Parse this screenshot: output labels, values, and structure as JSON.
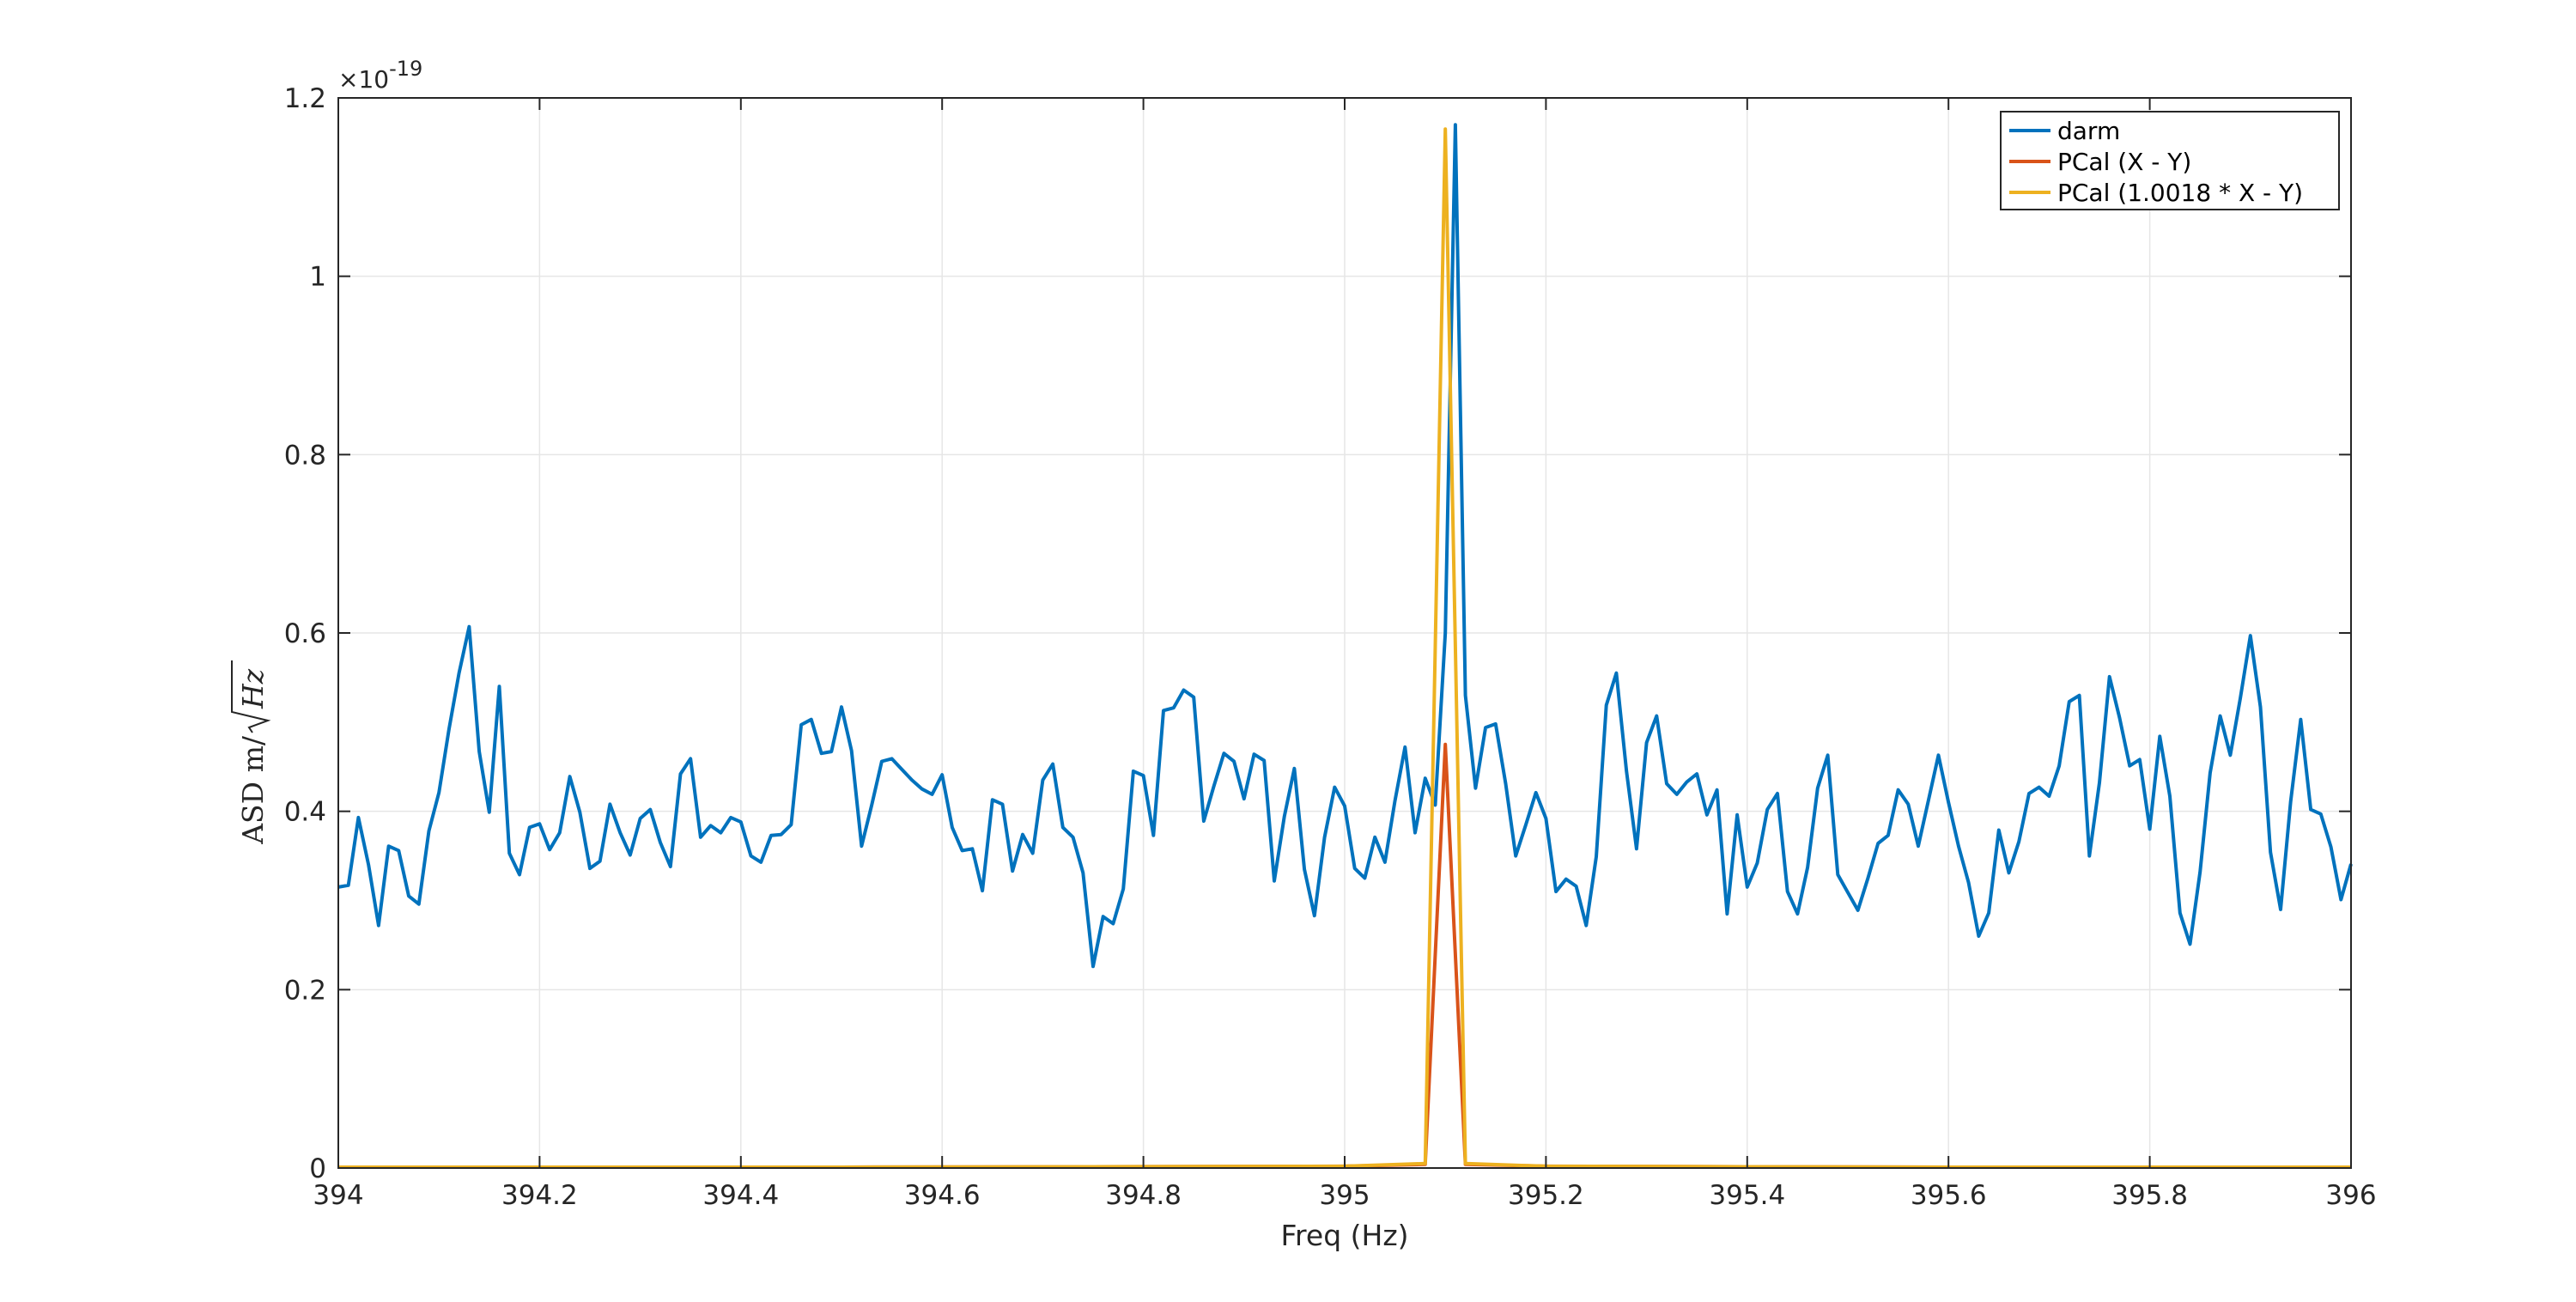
{
  "chart_data": {
    "type": "line",
    "xlabel": "Freq (Hz)",
    "ylabel_prefix": "ASD m/",
    "ylabel_radicand": "Hz",
    "y_exponent_label": "×10",
    "y_exponent_power": "-19",
    "xlim": [
      394,
      396
    ],
    "ylim": [
      0,
      1.2
    ],
    "grid": true,
    "legend_position": "top-right",
    "x_ticks": [
      394,
      394.2,
      394.4,
      394.6,
      394.8,
      395,
      395.2,
      395.4,
      395.6,
      395.8,
      396
    ],
    "x_tick_labels": [
      "394",
      "394.2",
      "394.4",
      "394.6",
      "394.8",
      "395",
      "395.2",
      "395.4",
      "395.6",
      "395.8",
      "396"
    ],
    "y_ticks": [
      0,
      0.2,
      0.4,
      0.6,
      0.8,
      1,
      1.2
    ],
    "y_tick_labels": [
      "0",
      "0.2",
      "0.4",
      "0.6",
      "0.8",
      "1",
      "1.2"
    ],
    "series": [
      {
        "name": "darm",
        "color": "#0072BD",
        "x_start": 394,
        "x_step": 0.01,
        "values": [
          0.315,
          0.317,
          0.393,
          0.34,
          0.272,
          0.361,
          0.356,
          0.305,
          0.296,
          0.378,
          0.421,
          0.492,
          0.555,
          0.607,
          0.467,
          0.399,
          0.54,
          0.353,
          0.329,
          0.382,
          0.386,
          0.357,
          0.376,
          0.439,
          0.399,
          0.336,
          0.344,
          0.408,
          0.376,
          0.351,
          0.392,
          0.402,
          0.365,
          0.338,
          0.442,
          0.459,
          0.371,
          0.384,
          0.376,
          0.393,
          0.388,
          0.35,
          0.343,
          0.373,
          0.374,
          0.385,
          0.497,
          0.503,
          0.465,
          0.467,
          0.517,
          0.468,
          0.361,
          0.407,
          0.456,
          0.459,
          0.447,
          0.435,
          0.425,
          0.419,
          0.441,
          0.382,
          0.356,
          0.358,
          0.311,
          0.413,
          0.408,
          0.333,
          0.374,
          0.353,
          0.435,
          0.453,
          0.382,
          0.371,
          0.331,
          0.226,
          0.282,
          0.274,
          0.313,
          0.445,
          0.44,
          0.373,
          0.513,
          0.516,
          0.536,
          0.528,
          0.389,
          0.428,
          0.465,
          0.456,
          0.414,
          0.464,
          0.457,
          0.322,
          0.394,
          0.448,
          0.335,
          0.283,
          0.371,
          0.427,
          0.406,
          0.336,
          0.325,
          0.371,
          0.343,
          0.412,
          0.472,
          0.376,
          0.437,
          0.407,
          0.6,
          1.17,
          0.53,
          0.426,
          0.494,
          0.498,
          0.431,
          0.35,
          0.385,
          0.421,
          0.392,
          0.31,
          0.324,
          0.316,
          0.272,
          0.349,
          0.519,
          0.555,
          0.445,
          0.358,
          0.477,
          0.507,
          0.431,
          0.419,
          0.433,
          0.442,
          0.396,
          0.424,
          0.285,
          0.396,
          0.315,
          0.342,
          0.402,
          0.42,
          0.31,
          0.285,
          0.337,
          0.426,
          0.463,
          0.329,
          0.309,
          0.289,
          0.325,
          0.364,
          0.373,
          0.424,
          0.408,
          0.361,
          0.412,
          0.463,
          0.41,
          0.361,
          0.32,
          0.26,
          0.286,
          0.379,
          0.331,
          0.366,
          0.42,
          0.427,
          0.417,
          0.451,
          0.523,
          0.53,
          0.35,
          0.432,
          0.551,
          0.505,
          0.451,
          0.458,
          0.38,
          0.484,
          0.417,
          0.286,
          0.251,
          0.332,
          0.443,
          0.507,
          0.463,
          0.527,
          0.597,
          0.517,
          0.354,
          0.29,
          0.411,
          0.503,
          0.402,
          0.397,
          0.36,
          0.301,
          0.341
        ]
      },
      {
        "name": "PCal (X - Y)",
        "color": "#D95319",
        "points": [
          [
            394,
            0.001
          ],
          [
            394.5,
            0.001
          ],
          [
            395.0,
            0.002
          ],
          [
            395.08,
            0.004
          ],
          [
            395.1,
            0.475
          ],
          [
            395.12,
            0.004
          ],
          [
            395.2,
            0.002
          ],
          [
            395.6,
            0.001
          ],
          [
            396,
            0.001
          ]
        ]
      },
      {
        "name": "PCal (1.0018 * X - Y)",
        "color": "#EDB120",
        "points": [
          [
            394,
            0.001
          ],
          [
            394.5,
            0.001
          ],
          [
            395.0,
            0.002
          ],
          [
            395.08,
            0.005
          ],
          [
            395.1,
            1.165
          ],
          [
            395.12,
            0.005
          ],
          [
            395.2,
            0.002
          ],
          [
            395.6,
            0.001
          ],
          [
            396,
            0.001
          ]
        ]
      }
    ]
  }
}
